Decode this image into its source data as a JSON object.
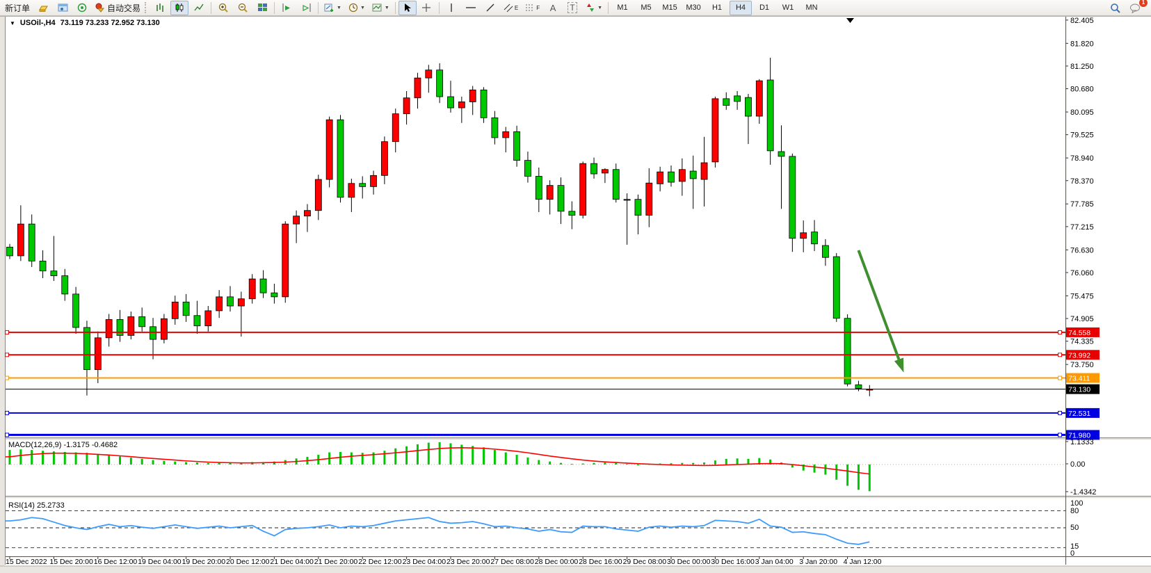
{
  "toolbar": {
    "new_order": "新订单",
    "auto_trading": "自动交易",
    "glyphs": {
      "text_a": "A",
      "text_t": "T",
      "channel_e": "E",
      "fibo_f": "F"
    },
    "badge": "1",
    "timeframes": [
      {
        "label": "M1",
        "active": false
      },
      {
        "label": "M5",
        "active": false
      },
      {
        "label": "M15",
        "active": false
      },
      {
        "label": "M30",
        "active": false
      },
      {
        "label": "H1",
        "active": false
      },
      {
        "label": "H4",
        "active": true
      },
      {
        "label": "D1",
        "active": false
      },
      {
        "label": "W1",
        "active": false
      },
      {
        "label": "MN",
        "active": false
      }
    ]
  },
  "window": {
    "symbol": "USOil-,H4",
    "ohlc": "73.119 73.233 72.952 73.130"
  },
  "chart_data": {
    "type": "candlestick",
    "symbol": "USOil",
    "timeframe": "H4",
    "up_color": "#ff0000",
    "down_color": "#00c800",
    "wick_color": "#000000",
    "price_range": [
      71.9,
      82.49
    ],
    "y_axis_ticks": [
      "82.405",
      "81.820",
      "81.250",
      "80.680",
      "80.095",
      "79.525",
      "78.940",
      "78.370",
      "77.785",
      "77.215",
      "76.630",
      "76.060",
      "75.475",
      "74.905",
      "74.335",
      "73.750"
    ],
    "x_labels": [
      "15 Dec 2022",
      "15 Dec 20:00",
      "16 Dec 12:00",
      "19 Dec 04:00",
      "19 Dec 20:00",
      "20 Dec 12:00",
      "21 Dec 04:00",
      "21 Dec 20:00",
      "22 Dec 12:00",
      "23 Dec 04:00",
      "23 Dec 20:00",
      "27 Dec 08:00",
      "28 Dec 00:00",
      "28 Dec 16:00",
      "29 Dec 08:00",
      "30 Dec 00:00",
      "30 Dec 16:00",
      "3 Jan 04:00",
      "3 Jan 20:00",
      "4 Jan 12:00"
    ],
    "candles": [
      [
        76.7,
        76.78,
        76.4,
        76.48
      ],
      [
        76.48,
        77.75,
        76.35,
        77.28
      ],
      [
        77.28,
        77.52,
        76.2,
        76.35
      ],
      [
        76.35,
        76.62,
        75.92,
        76.1
      ],
      [
        76.1,
        76.98,
        75.85,
        75.98
      ],
      [
        75.98,
        76.15,
        75.35,
        75.52
      ],
      [
        75.52,
        75.7,
        74.52,
        74.68
      ],
      [
        74.68,
        74.85,
        72.97,
        73.62
      ],
      [
        73.62,
        74.58,
        73.28,
        74.42
      ],
      [
        74.42,
        75.02,
        74.2,
        74.88
      ],
      [
        74.88,
        75.12,
        74.32,
        74.48
      ],
      [
        74.48,
        75.08,
        74.38,
        74.95
      ],
      [
        74.95,
        75.18,
        74.58,
        74.7
      ],
      [
        74.7,
        74.92,
        73.88,
        74.38
      ],
      [
        74.38,
        75.02,
        74.28,
        74.9
      ],
      [
        74.9,
        75.48,
        74.75,
        75.32
      ],
      [
        75.32,
        75.52,
        74.82,
        74.98
      ],
      [
        74.98,
        75.35,
        74.52,
        74.72
      ],
      [
        74.72,
        75.22,
        74.58,
        75.1
      ],
      [
        75.1,
        75.62,
        74.92,
        75.45
      ],
      [
        75.45,
        75.72,
        75.08,
        75.22
      ],
      [
        75.22,
        75.58,
        74.45,
        75.4
      ],
      [
        75.4,
        76.02,
        75.28,
        75.9
      ],
      [
        75.9,
        76.12,
        75.42,
        75.55
      ],
      [
        75.55,
        75.78,
        75.28,
        75.45
      ],
      [
        75.45,
        77.35,
        75.3,
        77.28
      ],
      [
        77.28,
        77.62,
        76.8,
        77.48
      ],
      [
        77.48,
        77.78,
        77.08,
        77.62
      ],
      [
        77.62,
        78.52,
        77.38,
        78.4
      ],
      [
        78.4,
        79.98,
        78.2,
        79.9
      ],
      [
        79.9,
        80.02,
        77.82,
        77.95
      ],
      [
        77.95,
        78.42,
        77.58,
        78.3
      ],
      [
        78.3,
        78.48,
        77.92,
        78.22
      ],
      [
        78.22,
        78.62,
        78.02,
        78.5
      ],
      [
        78.5,
        79.48,
        78.28,
        79.35
      ],
      [
        79.35,
        80.18,
        79.08,
        80.05
      ],
      [
        80.05,
        80.62,
        79.78,
        80.45
      ],
      [
        80.45,
        81.08,
        80.18,
        80.95
      ],
      [
        80.95,
        81.28,
        80.58,
        81.15
      ],
      [
        81.15,
        81.32,
        80.32,
        80.48
      ],
      [
        80.48,
        80.88,
        80.08,
        80.2
      ],
      [
        80.2,
        80.48,
        79.82,
        80.35
      ],
      [
        80.35,
        80.75,
        80.02,
        80.65
      ],
      [
        80.65,
        80.72,
        79.82,
        79.95
      ],
      [
        79.95,
        80.12,
        79.28,
        79.45
      ],
      [
        79.45,
        79.72,
        79.08,
        79.6
      ],
      [
        79.6,
        79.75,
        78.72,
        78.88
      ],
      [
        78.88,
        79.1,
        78.32,
        78.48
      ],
      [
        78.48,
        78.7,
        77.58,
        77.9
      ],
      [
        77.9,
        78.38,
        77.52,
        78.25
      ],
      [
        78.25,
        78.45,
        77.28,
        77.6
      ],
      [
        77.6,
        77.85,
        77.15,
        77.5
      ],
      [
        77.5,
        78.85,
        77.42,
        78.8
      ],
      [
        78.8,
        78.95,
        78.42,
        78.54
      ],
      [
        78.56,
        78.68,
        78.31,
        78.65
      ],
      [
        78.65,
        78.8,
        77.82,
        77.9
      ],
      [
        77.9,
        78.05,
        76.76,
        77.9
      ],
      [
        77.9,
        78.02,
        77.02,
        77.5
      ],
      [
        77.5,
        78.68,
        77.2,
        78.31
      ],
      [
        78.29,
        78.72,
        78.1,
        78.59
      ],
      [
        78.59,
        78.75,
        78.22,
        78.33
      ],
      [
        78.35,
        78.93,
        77.99,
        78.65
      ],
      [
        78.61,
        79.0,
        77.66,
        78.42
      ],
      [
        78.4,
        79.47,
        77.72,
        78.82
      ],
      [
        78.84,
        80.48,
        78.7,
        80.43
      ],
      [
        80.43,
        80.59,
        80.15,
        80.26
      ],
      [
        80.5,
        80.62,
        80.15,
        80.36
      ],
      [
        80.46,
        80.55,
        79.29,
        79.99
      ],
      [
        79.99,
        80.92,
        79.8,
        80.88
      ],
      [
        80.9,
        81.46,
        78.77,
        79.12
      ],
      [
        79.1,
        79.76,
        77.66,
        78.98
      ],
      [
        78.98,
        79.05,
        76.58,
        76.92
      ],
      [
        76.92,
        77.37,
        76.57,
        77.06
      ],
      [
        77.08,
        77.38,
        76.6,
        76.78
      ],
      [
        76.74,
        76.9,
        76.23,
        76.44
      ],
      [
        76.46,
        76.55,
        74.82,
        74.91
      ],
      [
        74.91,
        75.01,
        73.2,
        73.26
      ],
      [
        73.24,
        73.34,
        73.08,
        73.15
      ],
      [
        73.119,
        73.233,
        72.952,
        73.13
      ]
    ],
    "levels": [
      {
        "name": "resistance-line-1",
        "price": 74.558,
        "label": "74.558",
        "color": "#e60000",
        "width": 2,
        "anchors": true
      },
      {
        "name": "resistance-line-2",
        "price": 73.992,
        "label": "73.992",
        "color": "#e60000",
        "width": 2,
        "anchors": true
      },
      {
        "name": "support-line-orange",
        "price": 73.411,
        "label": "73.411",
        "color": "#ff9900",
        "width": 2,
        "anchors": true
      },
      {
        "name": "support-line-blue-1",
        "price": 72.531,
        "label": "72.531",
        "color": "#0000e0",
        "width": 2,
        "anchors": true
      },
      {
        "name": "support-line-blue-2",
        "price": 71.98,
        "label": "71.980",
        "color": "#0000e0",
        "width": 3,
        "anchors": true
      }
    ],
    "bid": {
      "price": 73.13,
      "label": "73.130",
      "color": "#000000"
    },
    "arrow": {
      "from_bar": 77.0,
      "from_price": 76.62,
      "to_bar": 81.1,
      "to_price": 73.55,
      "color": "#3f8f2f",
      "width": 4
    },
    "macd": {
      "label": "MACD(12,26,9)",
      "values_text": "-1.3175 -0.4682",
      "ticks": [
        "1.1333",
        "0.00",
        "-1.4342"
      ],
      "range": [
        -1.4342,
        1.1333
      ],
      "hist_color": "#00c800",
      "signal_color": "#ff0000",
      "histogram": [
        0.72,
        0.75,
        0.72,
        0.68,
        0.65,
        0.62,
        0.6,
        0.58,
        0.52,
        0.45,
        0.4,
        0.34,
        0.28,
        0.22,
        0.18,
        0.15,
        0.12,
        0.1,
        0.08,
        0.08,
        0.1,
        0.1,
        0.12,
        0.12,
        0.15,
        0.22,
        0.3,
        0.38,
        0.48,
        0.6,
        0.62,
        0.6,
        0.58,
        0.6,
        0.68,
        0.8,
        0.9,
        1.0,
        1.08,
        1.1,
        1.05,
        0.98,
        0.92,
        0.85,
        0.72,
        0.6,
        0.48,
        0.35,
        0.22,
        0.15,
        0.08,
        0.03,
        0.05,
        0.08,
        0.1,
        0.08,
        0.03,
        0.0,
        0.02,
        0.05,
        0.06,
        0.08,
        0.08,
        0.1,
        0.2,
        0.28,
        0.3,
        0.28,
        0.32,
        0.25,
        0.1,
        -0.15,
        -0.3,
        -0.4,
        -0.5,
        -0.75,
        -1.05,
        -1.25,
        -1.3175
      ],
      "signal": [
        0.38,
        0.45,
        0.5,
        0.54,
        0.56,
        0.56,
        0.55,
        0.53,
        0.5,
        0.47,
        0.43,
        0.39,
        0.34,
        0.3,
        0.26,
        0.22,
        0.18,
        0.15,
        0.12,
        0.1,
        0.09,
        0.08,
        0.08,
        0.09,
        0.1,
        0.12,
        0.15,
        0.19,
        0.24,
        0.3,
        0.36,
        0.41,
        0.45,
        0.49,
        0.53,
        0.58,
        0.63,
        0.69,
        0.74,
        0.79,
        0.82,
        0.83,
        0.82,
        0.8,
        0.76,
        0.71,
        0.65,
        0.58,
        0.5,
        0.42,
        0.35,
        0.28,
        0.22,
        0.17,
        0.13,
        0.1,
        0.07,
        0.04,
        0.02,
        0.0,
        -0.02,
        -0.03,
        -0.04,
        -0.05,
        -0.04,
        -0.02,
        0.0,
        0.02,
        0.04,
        0.05,
        0.04,
        0.0,
        -0.06,
        -0.12,
        -0.18,
        -0.25,
        -0.32,
        -0.4,
        -0.4682
      ]
    },
    "rsi": {
      "label": "RSI(14)",
      "value_text": "25.2733",
      "ticks": [
        "100",
        "80",
        "50",
        "15",
        "0"
      ],
      "levels": [
        80,
        50,
        15
      ],
      "range": [
        0,
        100
      ],
      "color": "#3d9bff",
      "values": [
        62,
        64,
        68,
        66,
        60,
        54,
        50,
        47,
        52,
        56,
        52,
        54,
        51,
        49,
        52,
        55,
        52,
        49,
        51,
        53,
        50,
        52,
        54,
        44,
        36,
        47,
        49,
        50,
        52,
        55,
        50,
        53,
        52,
        54,
        58,
        62,
        64,
        66,
        68,
        61,
        58,
        59,
        61,
        57,
        52,
        53,
        50,
        48,
        44,
        47,
        43,
        42,
        53,
        52,
        52,
        48,
        46,
        44,
        51,
        53,
        51,
        53,
        52,
        54,
        63,
        62,
        61,
        58,
        65,
        53,
        51,
        42,
        43,
        40,
        38,
        30,
        23,
        21,
        25.27
      ]
    }
  }
}
